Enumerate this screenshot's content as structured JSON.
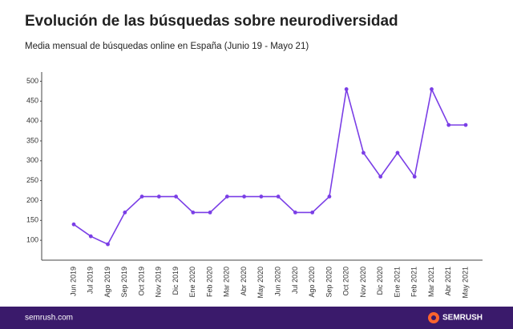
{
  "chart_data": {
    "type": "line",
    "title": "Evolución de las búsquedas sobre neurodiversidad",
    "subtitle": "Media mensual de búsquedas online en España (Junio 19 - Mayo 21)",
    "categories": [
      "Jun 2019",
      "Jul 2019",
      "Ago 2019",
      "Sep 2019",
      "Oct 2019",
      "Nov 2019",
      "Dic 2019",
      "Ene 2020",
      "Feb 2020",
      "Mar 2020",
      "Abr 2020",
      "May 2020",
      "Jun 2020",
      "Jul 2020",
      "Ago 2020",
      "Sep 2020",
      "Oct 2020",
      "Nov 2020",
      "Dic 2020",
      "Ene 2021",
      "Feb 2021",
      "Mar 2021",
      "Abr 2021",
      "May 2021"
    ],
    "values": [
      140,
      110,
      90,
      170,
      210,
      210,
      210,
      170,
      170,
      210,
      210,
      210,
      210,
      170,
      170,
      210,
      480,
      320,
      260,
      320,
      260,
      480,
      390,
      390
    ],
    "color": "#7a3ee6",
    "ylim": [
      50,
      500
    ],
    "yticks": [
      100,
      150,
      200,
      250,
      300,
      350,
      400,
      450,
      500
    ],
    "grid": false
  },
  "footer": {
    "site": "semrush.com",
    "brand": "SEMRUSH"
  }
}
